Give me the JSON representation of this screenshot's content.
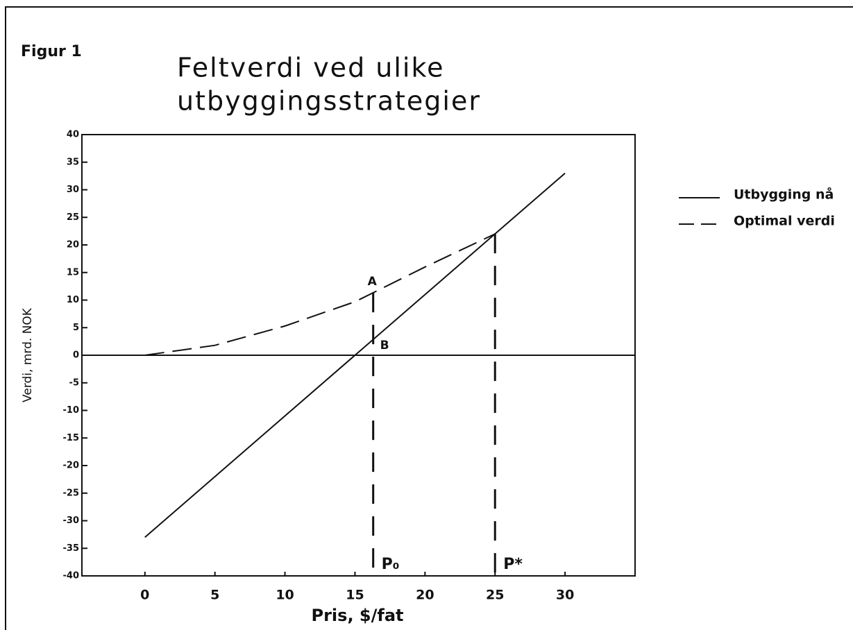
{
  "chart_data": {
    "type": "line",
    "figure_label": "Figur 1",
    "title": [
      "Feltverdi ved ulike",
      "utbyggingsstrategier"
    ],
    "xlabel": "Pris, $/fat",
    "ylabel": "Verdi, mrd. NOK",
    "xlim": [
      -4.5,
      35
    ],
    "ylim": [
      -40,
      40
    ],
    "xticks": [
      0,
      5,
      10,
      15,
      20,
      25,
      30
    ],
    "yticks": [
      40,
      35,
      30,
      25,
      20,
      15,
      10,
      5,
      0,
      -5,
      -10,
      -15,
      -20,
      -25,
      -30,
      -35,
      -40
    ],
    "hline": 0,
    "series": [
      {
        "name": "Utbygging nå",
        "color": "#111111",
        "dash": "solid",
        "x": [
          0,
          30
        ],
        "values": [
          -33,
          33
        ]
      },
      {
        "name": "Optimal verdi",
        "color": "#111111",
        "dash": "dashed",
        "x": [
          0,
          5,
          10,
          15,
          20,
          25
        ],
        "values": [
          0,
          1.8,
          5.3,
          9.7,
          16,
          22
        ]
      }
    ],
    "markers": [
      {
        "x": 16.3,
        "from": 11.3,
        "label": "P₀"
      },
      {
        "x": 25,
        "from": 22,
        "label": "P*"
      }
    ],
    "annotations": [
      {
        "text": "A",
        "x": 16.3,
        "y": 11.3
      },
      {
        "text": "B",
        "x": 16.3,
        "y": 3
      }
    ],
    "legend": "right"
  }
}
